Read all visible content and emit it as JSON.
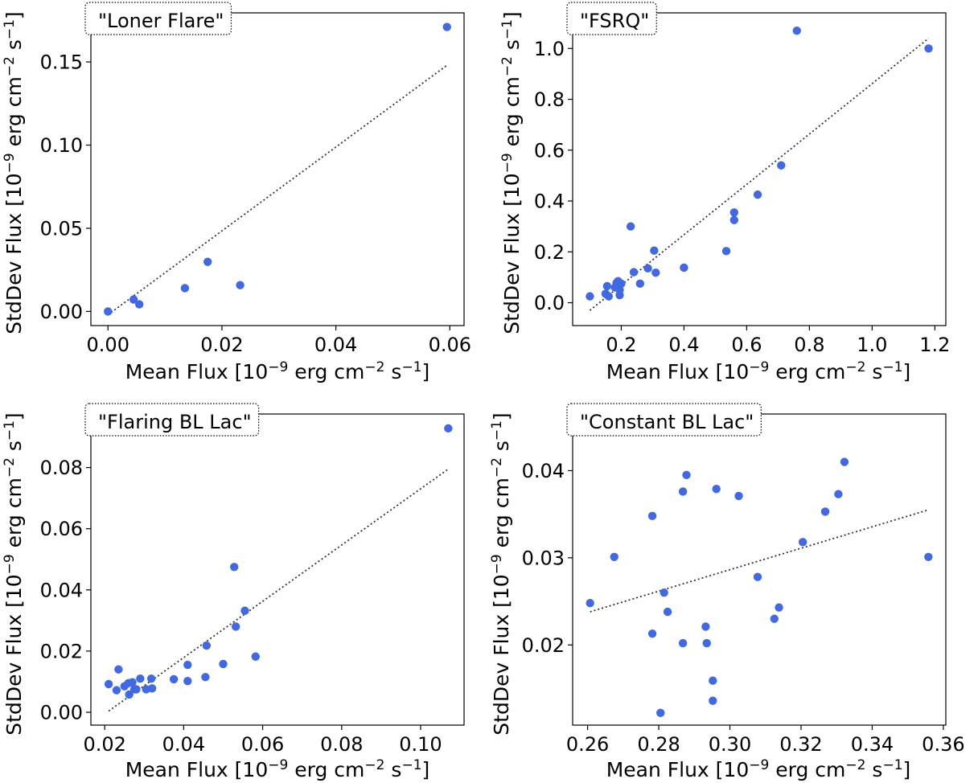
{
  "figure": {
    "xlabel": "Mean Flux [10$^{-9}$ erg cm$^{-2}$ s$^{-1}$]",
    "ylabel": "StdDev Flux [10$^{-9}$ erg cm$^{-2}$ s$^{-1}$]"
  },
  "colors": {
    "points": "#4169e1",
    "fit": "#333333",
    "axes": "#000000"
  },
  "chart_data": [
    {
      "type": "scatter",
      "title": "\"Loner Flare\"",
      "xlabel": "Mean Flux [10$^{-9}$ erg cm$^{-2}$ s$^{-1}$]",
      "ylabel": "StdDev Flux [10$^{-9}$ erg cm$^{-2}$ s$^{-1}$]",
      "xlim": [
        -0.003,
        0.0625
      ],
      "ylim": [
        -0.0085,
        0.1795
      ],
      "xticks": [
        0.0,
        0.02,
        0.04,
        0.06
      ],
      "xtick_labels": [
        "0.00",
        "0.02",
        "0.04",
        "0.06"
      ],
      "yticks": [
        0.0,
        0.05,
        0.1,
        0.15
      ],
      "ytick_labels": [
        "0.00",
        "0.05",
        "0.10",
        "0.15"
      ],
      "points": [
        [
          0.0,
          0.0
        ],
        [
          0.0045,
          0.0072
        ],
        [
          0.0055,
          0.0043
        ],
        [
          0.0135,
          0.014
        ],
        [
          0.0175,
          0.0298
        ],
        [
          0.0232,
          0.0158
        ],
        [
          0.0595,
          0.171
        ]
      ],
      "fit_line": [
        [
          0.0,
          -0.002
        ],
        [
          0.0595,
          0.148
        ]
      ]
    },
    {
      "type": "scatter",
      "title": "\"FSRQ\"",
      "xlabel": "Mean Flux [10$^{-9}$ erg cm$^{-2}$ s$^{-1}$]",
      "ylabel": "StdDev Flux [10$^{-9}$ erg cm$^{-2}$ s$^{-1}$]",
      "xlim": [
        0.045,
        1.235
      ],
      "ylim": [
        -0.09,
        1.14
      ],
      "xticks": [
        0.2,
        0.4,
        0.6,
        0.8,
        1.0,
        1.2
      ],
      "xtick_labels": [
        "0.2",
        "0.4",
        "0.6",
        "0.8",
        "1.0",
        "1.2"
      ],
      "yticks": [
        0.0,
        0.2,
        0.4,
        0.6,
        0.8,
        1.0
      ],
      "ytick_labels": [
        "0.0",
        "0.2",
        "0.4",
        "0.6",
        "0.8",
        "1.0"
      ],
      "points": [
        [
          0.1,
          0.025
        ],
        [
          0.15,
          0.035
        ],
        [
          0.155,
          0.065
        ],
        [
          0.16,
          0.025
        ],
        [
          0.18,
          0.06
        ],
        [
          0.185,
          0.078
        ],
        [
          0.19,
          0.085
        ],
        [
          0.195,
          0.03
        ],
        [
          0.195,
          0.05
        ],
        [
          0.2,
          0.075
        ],
        [
          0.23,
          0.3
        ],
        [
          0.24,
          0.12
        ],
        [
          0.26,
          0.075
        ],
        [
          0.285,
          0.135
        ],
        [
          0.305,
          0.205
        ],
        [
          0.31,
          0.118
        ],
        [
          0.4,
          0.138
        ],
        [
          0.535,
          0.203
        ],
        [
          0.56,
          0.355
        ],
        [
          0.56,
          0.325
        ],
        [
          0.635,
          0.425
        ],
        [
          0.71,
          0.54
        ],
        [
          0.76,
          1.07
        ],
        [
          1.18,
          1.0
        ]
      ],
      "fit_line": [
        [
          0.1,
          -0.03
        ],
        [
          1.18,
          1.04
        ]
      ]
    },
    {
      "type": "scatter",
      "title": "\"Flaring BL Lac\"",
      "xlabel": "Mean Flux [10$^{-9}$ erg cm$^{-2}$ s$^{-1}$]",
      "ylabel": "StdDev Flux [10$^{-9}$ erg cm$^{-2}$ s$^{-1}$]",
      "xlim": [
        0.0165,
        0.111
      ],
      "ylim": [
        -0.0042,
        0.0975
      ],
      "xticks": [
        0.02,
        0.04,
        0.06,
        0.08,
        0.1
      ],
      "xtick_labels": [
        "0.02",
        "0.04",
        "0.06",
        "0.08",
        "0.10"
      ],
      "yticks": [
        0.0,
        0.02,
        0.04,
        0.06,
        0.08
      ],
      "ytick_labels": [
        "0.00",
        "0.02",
        "0.04",
        "0.06",
        "0.08"
      ],
      "points": [
        [
          0.021,
          0.0092
        ],
        [
          0.023,
          0.0072
        ],
        [
          0.0235,
          0.014
        ],
        [
          0.025,
          0.0085
        ],
        [
          0.026,
          0.0095
        ],
        [
          0.0262,
          0.0058
        ],
        [
          0.027,
          0.0098
        ],
        [
          0.0275,
          0.0075
        ],
        [
          0.028,
          0.0075
        ],
        [
          0.029,
          0.011
        ],
        [
          0.0305,
          0.0075
        ],
        [
          0.0318,
          0.011
        ],
        [
          0.032,
          0.0078
        ],
        [
          0.0375,
          0.0108
        ],
        [
          0.041,
          0.0102
        ],
        [
          0.041,
          0.0155
        ],
        [
          0.0455,
          0.0115
        ],
        [
          0.0458,
          0.0218
        ],
        [
          0.05,
          0.0158
        ],
        [
          0.0528,
          0.0475
        ],
        [
          0.0532,
          0.028
        ],
        [
          0.0555,
          0.0332
        ],
        [
          0.0582,
          0.0182
        ],
        [
          0.107,
          0.0928
        ]
      ],
      "fit_line": [
        [
          0.021,
          0.0004
        ],
        [
          0.107,
          0.0795
        ]
      ]
    },
    {
      "type": "scatter",
      "title": "\"Constant BL Lac\"",
      "xlabel": "Mean Flux [10$^{-9}$ erg cm$^{-2}$ s$^{-1}$]",
      "ylabel": "StdDev Flux [10$^{-9}$ erg cm$^{-2}$ s$^{-1}$]",
      "xlim": [
        0.2558,
        0.3607
      ],
      "ylim": [
        0.0108,
        0.0465
      ],
      "xticks": [
        0.26,
        0.28,
        0.3,
        0.32,
        0.34,
        0.36
      ],
      "xtick_labels": [
        "0.26",
        "0.28",
        "0.30",
        "0.32",
        "0.34",
        "0.36"
      ],
      "yticks": [
        0.02,
        0.03,
        0.04
      ],
      "ytick_labels": [
        "0.02",
        "0.03",
        "0.04"
      ],
      "points": [
        [
          0.2607,
          0.0248
        ],
        [
          0.2675,
          0.0301
        ],
        [
          0.2782,
          0.0348
        ],
        [
          0.2782,
          0.0213
        ],
        [
          0.2805,
          0.0122
        ],
        [
          0.2815,
          0.026
        ],
        [
          0.2825,
          0.0238
        ],
        [
          0.2868,
          0.0376
        ],
        [
          0.2868,
          0.0202
        ],
        [
          0.2878,
          0.0395
        ],
        [
          0.2932,
          0.0221
        ],
        [
          0.2935,
          0.0202
        ],
        [
          0.2952,
          0.0159
        ],
        [
          0.2952,
          0.0136
        ],
        [
          0.2962,
          0.0379
        ],
        [
          0.3025,
          0.0371
        ],
        [
          0.3078,
          0.0278
        ],
        [
          0.3125,
          0.023
        ],
        [
          0.3138,
          0.0243
        ],
        [
          0.3205,
          0.0318
        ],
        [
          0.3268,
          0.0353
        ],
        [
          0.3305,
          0.0373
        ],
        [
          0.3322,
          0.041
        ],
        [
          0.3558,
          0.0301
        ]
      ],
      "fit_line": [
        [
          0.2607,
          0.0238
        ],
        [
          0.3558,
          0.0355
        ]
      ]
    }
  ]
}
